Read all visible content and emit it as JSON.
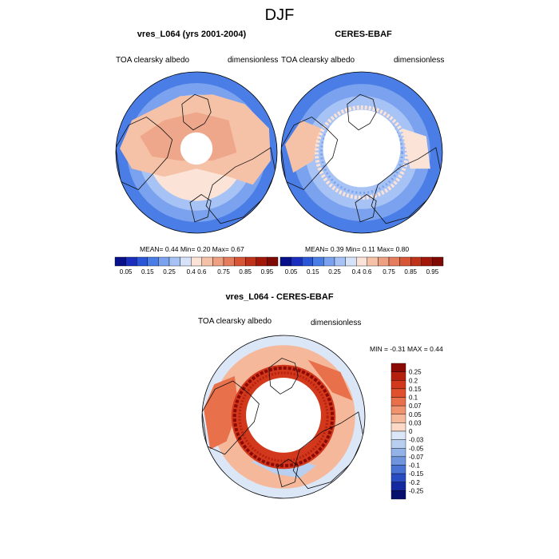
{
  "figure_title": "DJF",
  "chart_data": [
    {
      "type": "heatmap",
      "title": "vres_L064 (yrs 2001-2004)",
      "left_label": "TOA clearsky albedo",
      "right_label": "dimensionless",
      "projection": "north polar stereographic",
      "stats": {
        "mean_label": "MEAN=",
        "mean": "0.44",
        "min_label": "Min=",
        "min": "0.20",
        "max_label": "Max=",
        "max": "0.67"
      },
      "colorbar": {
        "orientation": "horizontal",
        "levels": [
          "0.05",
          "0.15",
          "0.25",
          "0.4",
          "0.6",
          "0.75",
          "0.85",
          "0.95"
        ],
        "colors": [
          "#08108a",
          "#1a2fbf",
          "#2b56d8",
          "#4a7ee6",
          "#7aa2ee",
          "#a7c2f4",
          "#d5e2fa",
          "#fbe3d8",
          "#f5c2a8",
          "#eea083",
          "#e57c5c",
          "#d65636",
          "#c0331b",
          "#a1180b",
          "#7f0a04"
        ]
      }
    },
    {
      "type": "heatmap",
      "title": "CERES-EBAF",
      "left_label": "TOA clearsky albedo",
      "right_label": "dimensionless",
      "projection": "north polar stereographic",
      "stats": {
        "mean_label": "MEAN=",
        "mean": "0.39",
        "min_label": "Min=",
        "min": "0.11",
        "max_label": "Max=",
        "max": "0.80"
      },
      "colorbar": {
        "orientation": "horizontal",
        "levels": [
          "0.05",
          "0.15",
          "0.25",
          "0.4",
          "0.6",
          "0.75",
          "0.85",
          "0.95"
        ],
        "colors": [
          "#08108a",
          "#1a2fbf",
          "#2b56d8",
          "#4a7ee6",
          "#7aa2ee",
          "#a7c2f4",
          "#d5e2fa",
          "#fbe3d8",
          "#f5c2a8",
          "#eea083",
          "#e57c5c",
          "#d65636",
          "#c0331b",
          "#a1180b",
          "#7f0a04"
        ]
      }
    },
    {
      "type": "heatmap",
      "title": "vres_L064 - CERES-EBAF",
      "left_label": "TOA clearsky albedo",
      "right_label": "dimensionless",
      "projection": "north polar stereographic",
      "stats": {
        "min_label": "MIN =",
        "min": "-0.31",
        "max_label": "MAX =",
        "max": "0.44"
      },
      "colorbar": {
        "orientation": "vertical",
        "levels": [
          "0.25",
          "0.2",
          "0.15",
          "0.1",
          "0.07",
          "0.05",
          "0.03",
          "0",
          "-0.03",
          "-0.05",
          "-0.07",
          "-0.1",
          "-0.15",
          "-0.2",
          "-0.25"
        ],
        "colors": [
          "#8b0a05",
          "#b5200e",
          "#d2381c",
          "#e0502c",
          "#e8704a",
          "#f09470",
          "#f6b89a",
          "#fbd9c6",
          "#dbe6f7",
          "#b8cff0",
          "#93b3e8",
          "#6f95df",
          "#4a73d4",
          "#2a4cc2",
          "#1428a0",
          "#060f6e"
        ]
      }
    }
  ]
}
